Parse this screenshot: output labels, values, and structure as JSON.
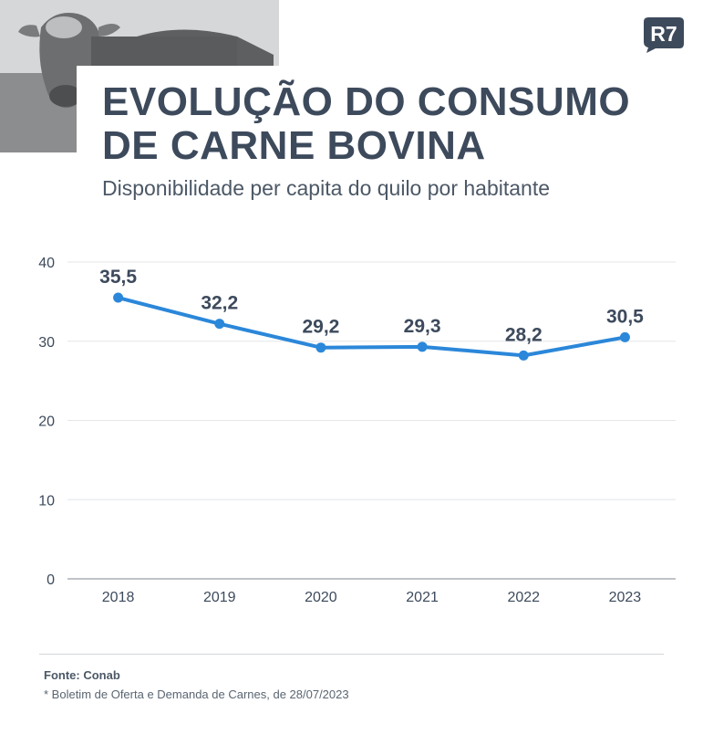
{
  "header": {
    "title_line1": "EVOLUÇÃO DO CONSUMO",
    "title_line2": "DE CARNE BOVINA",
    "subtitle": "Disponibilidade per capita do quilo por habitante",
    "logo_text": "R7"
  },
  "colors": {
    "line": "#2b87d9",
    "text": "#3d4a5c",
    "grid": "#e4e6e8",
    "axis": "#9aa1a8"
  },
  "chart_data": {
    "type": "line",
    "categories": [
      "2018",
      "2019",
      "2020",
      "2021",
      "2022",
      "2023"
    ],
    "series": [
      {
        "values": [
          35.5,
          32.2,
          29.2,
          29.3,
          28.2,
          30.5
        ]
      }
    ],
    "data_labels": [
      "35,5",
      "32,2",
      "29,2",
      "29,3",
      "28,2",
      "30,5"
    ],
    "ylim": [
      0,
      40
    ],
    "yticks": [
      0,
      10,
      20,
      30,
      40
    ],
    "ytick_labels": [
      "0",
      "10",
      "20",
      "30",
      "40"
    ],
    "grid": true
  },
  "footer": {
    "source": "Fonte: Conab",
    "note": "* Boletim de Oferta e Demanda de Carnes, de 28/07/2023"
  }
}
